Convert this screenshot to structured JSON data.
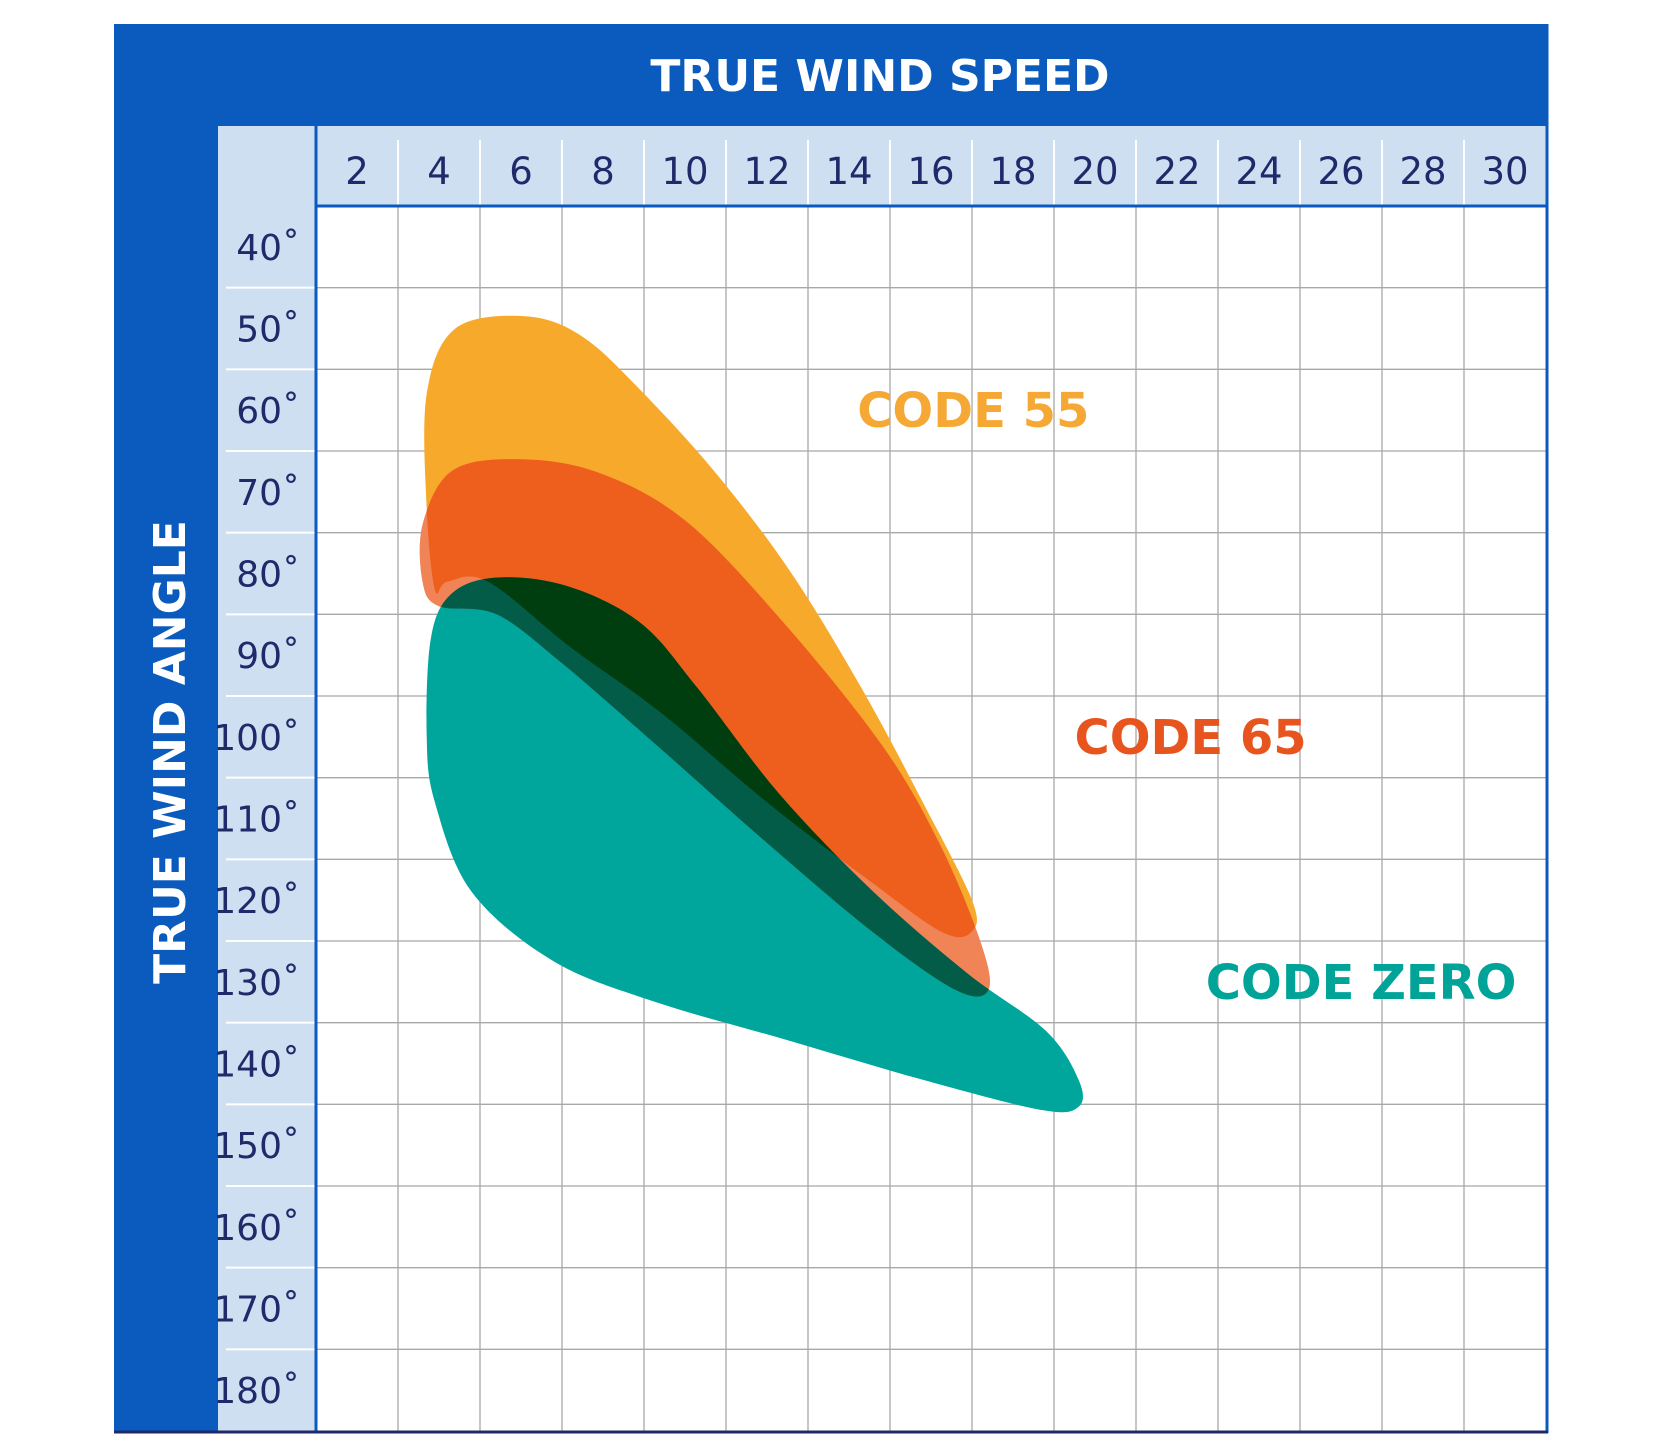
{
  "chart_data": {
    "type": "area",
    "xlabel": "TRUE WIND SPEED",
    "ylabel": "TRUE WIND ANGLE",
    "x_ticks": [
      "2",
      "4",
      "6",
      "8",
      "10",
      "12",
      "14",
      "16",
      "18",
      "20",
      "22",
      "24",
      "26",
      "28",
      "30"
    ],
    "y_ticks": [
      "40˚",
      "50˚",
      "60˚",
      "70˚",
      "80˚",
      "90˚",
      "100˚",
      "110˚",
      "120˚",
      "130˚",
      "140˚",
      "150˚",
      "160˚",
      "170˚",
      "180˚"
    ],
    "xlim": [
      1,
      31
    ],
    "ylim": [
      35,
      185
    ],
    "grid": true,
    "colors": {
      "frame": "#0a5bbd",
      "header_band": "#cfdff2",
      "tick_text": "#1f2a6b",
      "grid": "#a8a8a8",
      "overlap": "#003d0f"
    },
    "series": [
      {
        "name": "CODE 55",
        "color": "#f7a92b",
        "label_color": "#f6a835",
        "label_at": {
          "x": 14.2,
          "y": 60
        },
        "region": [
          [
            3.9,
            82
          ],
          [
            3.7,
            72
          ],
          [
            3.7,
            58
          ],
          [
            4.4,
            50
          ],
          [
            6.1,
            48.5
          ],
          [
            7.5,
            51
          ],
          [
            9.0,
            58
          ],
          [
            10.8,
            68
          ],
          [
            12.6,
            80
          ],
          [
            14.3,
            94
          ],
          [
            15.8,
            108
          ],
          [
            17.0,
            120
          ],
          [
            17.0,
            123.8
          ],
          [
            16.3,
            124
          ],
          [
            14.6,
            118
          ],
          [
            12.0,
            108
          ],
          [
            9.4,
            97
          ],
          [
            7.2,
            89
          ],
          [
            5.2,
            81
          ],
          [
            4.2,
            81
          ]
        ]
      },
      {
        "name": "CODE 65",
        "color": "#ee5f1d",
        "label_color": "#e8541e",
        "label_at": {
          "x": 19.5,
          "y": 100
        },
        "region": [
          [
            3.6,
            81
          ],
          [
            3.6,
            74
          ],
          [
            4.3,
            67.5
          ],
          [
            5.8,
            66
          ],
          [
            7.8,
            67.5
          ],
          [
            10.0,
            73.5
          ],
          [
            12.4,
            86
          ],
          [
            14.8,
            101
          ],
          [
            16.2,
            113
          ],
          [
            17.2,
            125
          ],
          [
            17.4,
            131
          ],
          [
            16.6,
            131
          ],
          [
            14.6,
            124
          ],
          [
            12.0,
            113
          ],
          [
            9.3,
            101
          ],
          [
            7.0,
            91
          ],
          [
            5.4,
            85
          ],
          [
            4.0,
            84
          ]
        ]
      },
      {
        "name": "CODE ZERO",
        "color": "#00a69c",
        "label_color": "#00a398",
        "label_at": {
          "x": 22.7,
          "y": 130
        },
        "region": [
          [
            3.7,
            100
          ],
          [
            3.8,
            88
          ],
          [
            4.3,
            82.5
          ],
          [
            5.4,
            80.5
          ],
          [
            7.1,
            81.5
          ],
          [
            8.9,
            86
          ],
          [
            10.3,
            94
          ],
          [
            12.3,
            107
          ],
          [
            14.6,
            119
          ],
          [
            16.9,
            129
          ],
          [
            18.8,
            136
          ],
          [
            19.6,
            142
          ],
          [
            19.6,
            145.3
          ],
          [
            18.7,
            145.7
          ],
          [
            15.8,
            142
          ],
          [
            12.4,
            137
          ],
          [
            9.3,
            132.5
          ],
          [
            6.8,
            127.5
          ],
          [
            4.8,
            119
          ],
          [
            3.9,
            108
          ]
        ]
      }
    ]
  }
}
